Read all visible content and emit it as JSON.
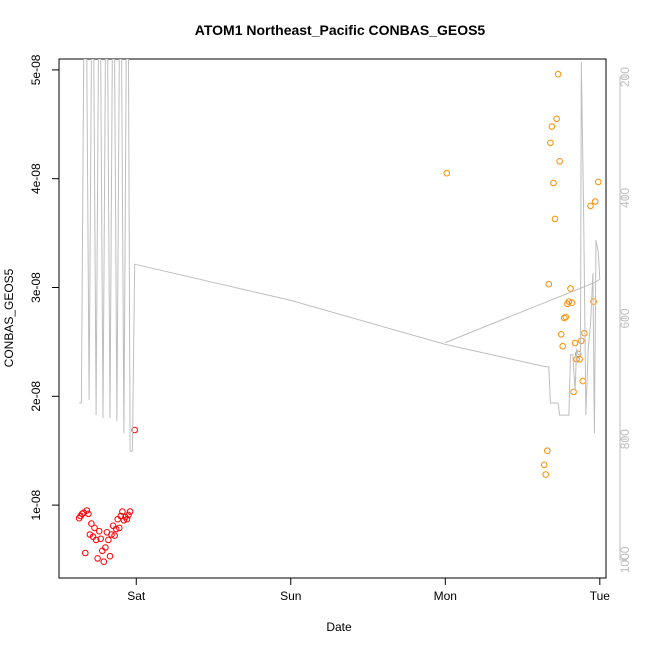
{
  "chart_data": {
    "type": "scatter",
    "title": "ATOM1 Northeast_Pacific CONBAS_GEOS5",
    "xlabel": "Date",
    "ylabel": "CONBAS_GEOS5",
    "x_unit": "days",
    "x_ticks": [
      {
        "label": "Sat",
        "value": 1
      },
      {
        "label": "Sun",
        "value": 2
      },
      {
        "label": "Mon",
        "value": 3
      },
      {
        "label": "Tue",
        "value": 4
      }
    ],
    "xlim": [
      0.5,
      4.04
    ],
    "ylim": [
      3.3e-09,
      5.1e-08
    ],
    "y_ticks": [
      {
        "label": "1e-08",
        "value": 1e-08
      },
      {
        "label": "2e-08",
        "value": 2e-08
      },
      {
        "label": "3e-08",
        "value": 3e-08
      },
      {
        "label": "4e-08",
        "value": 4e-08
      },
      {
        "label": "5e-08",
        "value": 5e-08
      }
    ],
    "right_axis": {
      "ylim": [
        1030,
        170
      ],
      "ticks": [
        "200",
        "400",
        "600",
        "800",
        "1000"
      ],
      "color": "#bebebe"
    },
    "grid": false,
    "series": [
      {
        "color": "#ff0000",
        "marker": "open-circle",
        "points": [
          [
            0.63,
            8.8e-09
          ],
          [
            0.64,
            9e-09
          ],
          [
            0.65,
            9.2e-09
          ],
          [
            0.66,
            9.3e-09
          ],
          [
            0.67,
            5.6e-09
          ],
          [
            0.68,
            9.5e-09
          ],
          [
            0.69,
            9.2e-09
          ],
          [
            0.7,
            7.3e-09
          ],
          [
            0.71,
            8.3e-09
          ],
          [
            0.72,
            7.1e-09
          ],
          [
            0.73,
            7.9e-09
          ],
          [
            0.74,
            6.8e-09
          ],
          [
            0.75,
            5.1e-09
          ],
          [
            0.76,
            7.6e-09
          ],
          [
            0.77,
            6.9e-09
          ],
          [
            0.78,
            5.8e-09
          ],
          [
            0.79,
            4.8e-09
          ],
          [
            0.8,
            6.1e-09
          ],
          [
            0.81,
            7.5e-09
          ],
          [
            0.82,
            6.8e-09
          ],
          [
            0.83,
            5.3e-09
          ],
          [
            0.84,
            7.3e-09
          ],
          [
            0.85,
            8.1e-09
          ],
          [
            0.86,
            7.2e-09
          ],
          [
            0.87,
            7.8e-09
          ],
          [
            0.88,
            8.7e-09
          ],
          [
            0.89,
            7.9e-09
          ],
          [
            0.9,
            9e-09
          ],
          [
            0.91,
            9.4e-09
          ],
          [
            0.92,
            8.6e-09
          ],
          [
            0.93,
            8.9e-09
          ],
          [
            0.94,
            8.7e-09
          ],
          [
            0.95,
            9.1e-09
          ],
          [
            0.96,
            9.4e-09
          ],
          [
            0.99,
            1.69e-08
          ]
        ]
      },
      {
        "color": "#ff8c00",
        "marker": "open-circle",
        "points": [
          [
            3.01,
            4.05e-08
          ],
          [
            3.64,
            1.37e-08
          ],
          [
            3.65,
            1.28e-08
          ],
          [
            3.66,
            1.5e-08
          ],
          [
            3.67,
            3.03e-08
          ],
          [
            3.68,
            4.33e-08
          ],
          [
            3.69,
            4.48e-08
          ],
          [
            3.7,
            3.96e-08
          ],
          [
            3.71,
            3.63e-08
          ],
          [
            3.72,
            4.55e-08
          ],
          [
            3.73,
            4.96e-08
          ],
          [
            3.74,
            4.16e-08
          ],
          [
            3.75,
            2.57e-08
          ],
          [
            3.76,
            2.46e-08
          ],
          [
            3.77,
            2.72e-08
          ],
          [
            3.78,
            2.73e-08
          ],
          [
            3.79,
            2.85e-08
          ],
          [
            3.8,
            2.87e-08
          ],
          [
            3.81,
            2.99e-08
          ],
          [
            3.82,
            2.86e-08
          ],
          [
            3.83,
            2.04e-08
          ],
          [
            3.84,
            2.49e-08
          ],
          [
            3.85,
            2.34e-08
          ],
          [
            3.86,
            2.39e-08
          ],
          [
            3.87,
            2.34e-08
          ],
          [
            3.88,
            2.51e-08
          ],
          [
            3.89,
            2.14e-08
          ],
          [
            3.9,
            2.58e-08
          ],
          [
            3.94,
            3.75e-08
          ],
          [
            3.96,
            2.87e-08
          ],
          [
            3.97,
            3.79e-08
          ],
          [
            3.99,
            3.97e-08
          ]
        ]
      },
      {
        "color": "#bebebe",
        "marker": "line",
        "axis": "right",
        "points": [
          [
            0.63,
            740
          ],
          [
            0.645,
            740
          ],
          [
            0.66,
            170
          ],
          [
            0.68,
            170
          ],
          [
            0.695,
            735
          ],
          [
            0.71,
            170
          ],
          [
            0.725,
            170
          ],
          [
            0.74,
            760
          ],
          [
            0.755,
            170
          ],
          [
            0.77,
            170
          ],
          [
            0.785,
            765
          ],
          [
            0.8,
            170
          ],
          [
            0.815,
            170
          ],
          [
            0.83,
            765
          ],
          [
            0.845,
            170
          ],
          [
            0.86,
            170
          ],
          [
            0.875,
            770
          ],
          [
            0.89,
            170
          ],
          [
            0.905,
            170
          ],
          [
            0.92,
            790
          ],
          [
            0.935,
            170
          ],
          [
            0.95,
            170
          ],
          [
            0.96,
            820
          ],
          [
            0.975,
            820
          ],
          [
            0.99,
            510
          ],
          [
            2.0,
            570
          ],
          [
            3.0,
            643
          ],
          [
            3.65,
            680
          ],
          [
            3.67,
            680
          ],
          [
            3.68,
            740
          ],
          [
            3.73,
            740
          ],
          [
            3.74,
            760
          ],
          [
            3.8,
            760
          ],
          [
            3.81,
            660
          ],
          [
            3.825,
            660
          ],
          [
            3.84,
            720
          ],
          [
            3.85,
            650
          ],
          [
            3.86,
            660
          ],
          [
            3.875,
            660
          ],
          [
            3.88,
            175
          ],
          [
            3.895,
            420
          ],
          [
            3.91,
            760
          ],
          [
            3.925,
            650
          ],
          [
            3.94,
            610
          ],
          [
            3.955,
            525
          ],
          [
            3.965,
            790
          ],
          [
            3.975,
            470
          ],
          [
            3.99,
            490
          ],
          [
            4.0,
            535
          ],
          [
            3.97,
            540
          ],
          [
            3.0,
            640
          ]
        ]
      }
    ]
  }
}
